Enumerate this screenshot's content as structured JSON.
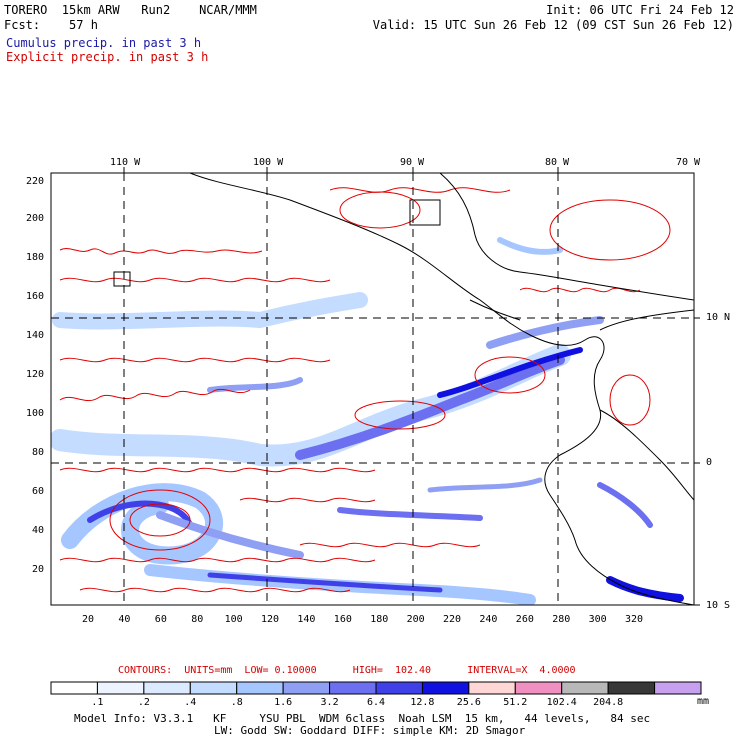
{
  "header": {
    "line1_left": "TORERO  15km ARW   Run2    NCAR/MMM",
    "line1_right": "Init: 06 UTC Fri 24 Feb 12",
    "line2_left": "Fcst:    57 h",
    "line2_right": "Valid: 15 UTC Sun 26 Feb 12 (09 CST Sun 26 Feb 12)",
    "line3": "Cumulus precip. in past 3 h",
    "line4": "Explicit precip. in past 3 h"
  },
  "map": {
    "top_ticks": [
      "110 W",
      "100 W",
      "90 W",
      "80 W",
      "70 W"
    ],
    "right_ticks": [
      "10 N",
      "0",
      "10 S"
    ],
    "left_ticks": [
      "220",
      "200",
      "180",
      "160",
      "140",
      "120",
      "100",
      "80",
      "60",
      "40",
      "20"
    ],
    "bottom_ticks": [
      "20",
      "40",
      "60",
      "80",
      "100",
      "120",
      "140",
      "160",
      "180",
      "200",
      "220",
      "240",
      "260",
      "280",
      "300",
      "320"
    ]
  },
  "contour_info": {
    "label": "CONTOURS:  UNITS=mm  LOW= 0.10000      HIGH=  102.40      INTERVAL=X  4.0000"
  },
  "colorbar": {
    "labels": [
      ".1",
      ".2",
      ".4",
      ".8",
      "1.6",
      "3.2",
      "6.4",
      "12.8",
      "25.6",
      "51.2",
      "102.4",
      "204.8"
    ],
    "unit": "mm",
    "colors": [
      "#ffffff",
      "#eef4ff",
      "#dceaff",
      "#c4dcff",
      "#a6c6ff",
      "#8fa0f4",
      "#6b6ff0",
      "#4040e8",
      "#1010e0",
      "#ffd6d6",
      "#f090c0",
      "#b8b8b8",
      "#383838",
      "#c8a0f0"
    ]
  },
  "footer": {
    "line1": "Model Info: V3.3.1   KF     YSU PBL  WDM 6class  Noah LSM  15 km,   44 levels,   84 sec",
    "line2": "LW: Godd SW: Goddard DIFF: simple KM: 2D Smagor"
  }
}
